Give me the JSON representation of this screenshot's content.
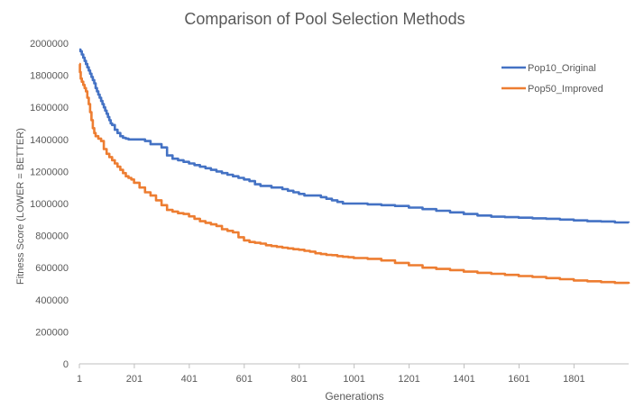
{
  "chart_data": {
    "type": "line",
    "title": "Comparison of Pool Selection Methods",
    "xlabel": "Generations",
    "ylabel": "Fitness Score (LOWER = BETTER)",
    "xlim": [
      1,
      2000
    ],
    "ylim": [
      0,
      2000000
    ],
    "yticks": [
      0,
      200000,
      400000,
      600000,
      800000,
      1000000,
      1200000,
      1400000,
      1600000,
      1800000,
      2000000
    ],
    "ytick_labels": [
      "0",
      "200000",
      "400000",
      "600000",
      "800000",
      "1000000",
      "1200000",
      "1400000",
      "1600000",
      "1800000",
      "2000000"
    ],
    "xticks": [
      1,
      201,
      401,
      601,
      801,
      1001,
      1201,
      1401,
      1601,
      1801
    ],
    "xtick_labels": [
      "1",
      "201",
      "401",
      "601",
      "801",
      "1001",
      "1201",
      "1401",
      "1601",
      "1801"
    ],
    "grid": false,
    "legend_position": "top-right",
    "series": [
      {
        "name": "Pop10_Original",
        "color": "#4472C4",
        "x": [
          1,
          5,
          10,
          15,
          20,
          25,
          30,
          35,
          40,
          45,
          50,
          55,
          60,
          65,
          70,
          75,
          80,
          85,
          90,
          95,
          100,
          105,
          110,
          115,
          120,
          130,
          140,
          150,
          160,
          170,
          180,
          190,
          200,
          220,
          240,
          260,
          280,
          300,
          320,
          340,
          360,
          380,
          400,
          420,
          440,
          460,
          480,
          500,
          520,
          540,
          560,
          580,
          600,
          620,
          640,
          660,
          680,
          700,
          720,
          740,
          760,
          780,
          800,
          820,
          840,
          860,
          880,
          900,
          920,
          940,
          960,
          980,
          1000,
          1050,
          1100,
          1150,
          1200,
          1250,
          1300,
          1350,
          1400,
          1450,
          1500,
          1550,
          1600,
          1650,
          1700,
          1750,
          1800,
          1850,
          1900,
          1950,
          2000
        ],
        "y": [
          1960000,
          1950000,
          1930000,
          1910000,
          1890000,
          1870000,
          1850000,
          1830000,
          1810000,
          1790000,
          1770000,
          1750000,
          1720000,
          1700000,
          1680000,
          1660000,
          1640000,
          1620000,
          1600000,
          1580000,
          1560000,
          1540000,
          1520000,
          1500000,
          1490000,
          1460000,
          1440000,
          1420000,
          1410000,
          1405000,
          1400000,
          1400000,
          1400000,
          1400000,
          1390000,
          1370000,
          1370000,
          1350000,
          1300000,
          1280000,
          1270000,
          1260000,
          1250000,
          1240000,
          1230000,
          1220000,
          1210000,
          1200000,
          1190000,
          1180000,
          1170000,
          1160000,
          1150000,
          1140000,
          1120000,
          1110000,
          1110000,
          1100000,
          1100000,
          1090000,
          1080000,
          1070000,
          1060000,
          1050000,
          1050000,
          1050000,
          1040000,
          1030000,
          1020000,
          1010000,
          1000000,
          1000000,
          1000000,
          995000,
          990000,
          985000,
          975000,
          965000,
          955000,
          945000,
          935000,
          925000,
          918000,
          915000,
          912000,
          908000,
          905000,
          900000,
          895000,
          890000,
          888000,
          882000,
          880000
        ]
      },
      {
        "name": "Pop50_Improved",
        "color": "#ED7D31",
        "x": [
          1,
          3,
          6,
          10,
          15,
          20,
          25,
          30,
          35,
          40,
          45,
          50,
          55,
          60,
          70,
          80,
          90,
          100,
          110,
          120,
          130,
          140,
          150,
          160,
          170,
          180,
          190,
          200,
          220,
          240,
          260,
          280,
          300,
          320,
          340,
          360,
          380,
          400,
          420,
          440,
          460,
          480,
          500,
          520,
          540,
          560,
          580,
          600,
          620,
          640,
          660,
          680,
          700,
          720,
          740,
          760,
          780,
          800,
          820,
          840,
          860,
          880,
          900,
          920,
          940,
          960,
          980,
          1000,
          1050,
          1100,
          1150,
          1200,
          1250,
          1300,
          1350,
          1400,
          1450,
          1500,
          1550,
          1600,
          1650,
          1700,
          1750,
          1800,
          1850,
          1900,
          1950,
          2000
        ],
        "y": [
          1870000,
          1820000,
          1780000,
          1760000,
          1740000,
          1720000,
          1700000,
          1660000,
          1620000,
          1570000,
          1520000,
          1470000,
          1440000,
          1420000,
          1405000,
          1390000,
          1340000,
          1310000,
          1290000,
          1270000,
          1250000,
          1230000,
          1210000,
          1190000,
          1170000,
          1160000,
          1150000,
          1130000,
          1100000,
          1070000,
          1050000,
          1020000,
          990000,
          960000,
          950000,
          940000,
          935000,
          920000,
          905000,
          890000,
          880000,
          870000,
          860000,
          840000,
          830000,
          820000,
          790000,
          770000,
          760000,
          755000,
          750000,
          740000,
          735000,
          730000,
          725000,
          720000,
          715000,
          712000,
          705000,
          700000,
          690000,
          685000,
          680000,
          678000,
          672000,
          668000,
          665000,
          660000,
          655000,
          645000,
          630000,
          615000,
          600000,
          592000,
          585000,
          575000,
          568000,
          562000,
          555000,
          548000,
          542000,
          535000,
          528000,
          520000,
          515000,
          510000,
          505000,
          500000
        ]
      }
    ]
  }
}
